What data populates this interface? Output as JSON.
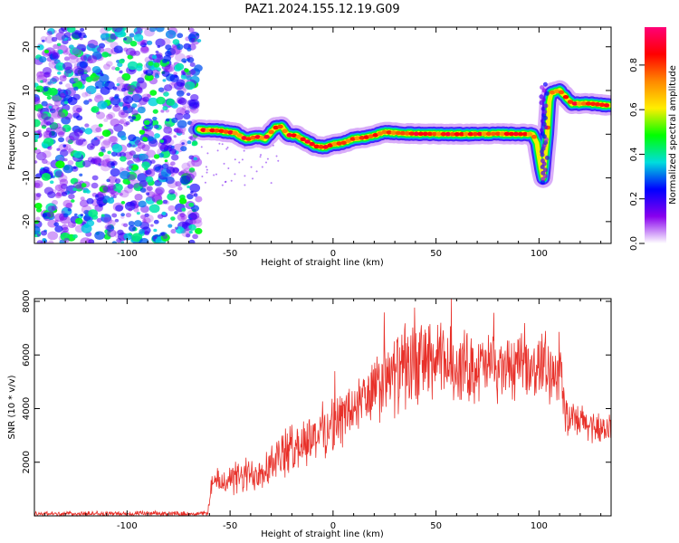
{
  "title": "PAZ1.2024.155.12.19.G09",
  "chart_data": [
    {
      "type": "heatmap",
      "xlabel": "Height of straight line (km)",
      "ylabel": "Frequency (Hz)",
      "xlim": [
        -145,
        135
      ],
      "ylim": [
        -25,
        24.5
      ],
      "xticks": [
        -100,
        -50,
        0,
        50,
        100
      ],
      "yticks": [
        -20,
        -10,
        0,
        10,
        20
      ],
      "noise_region": {
        "x": [
          -145,
          -65
        ],
        "amplitude": [
          0.1,
          0.5
        ]
      },
      "ridge": [
        [
          -65,
          1
        ],
        [
          -55,
          0.8
        ],
        [
          -47,
          0.2
        ],
        [
          -42,
          -1.2
        ],
        [
          -37,
          -0.6
        ],
        [
          -33,
          -1.0
        ],
        [
          -28,
          1.5
        ],
        [
          -25,
          1.8
        ],
        [
          -22,
          -0.2
        ],
        [
          -18,
          -0.3
        ],
        [
          -12,
          -1.8
        ],
        [
          -8,
          -2.8
        ],
        [
          -4,
          -3.0
        ],
        [
          0,
          -2.3
        ],
        [
          5,
          -2.0
        ],
        [
          10,
          -1.0
        ],
        [
          15,
          -0.8
        ],
        [
          20,
          -0.3
        ],
        [
          25,
          0.5
        ],
        [
          30,
          0.3
        ],
        [
          40,
          0.1
        ],
        [
          60,
          0.0
        ],
        [
          80,
          0.1
        ],
        [
          97,
          0.0
        ],
        [
          99,
          -2.0
        ],
        [
          101,
          -8.0
        ],
        [
          102,
          -10.0
        ],
        [
          103,
          -5.0
        ],
        [
          104,
          0.0
        ],
        [
          105,
          7.5
        ],
        [
          106,
          9.5
        ],
        [
          110,
          10.0
        ],
        [
          113,
          8.5
        ],
        [
          116,
          7.0
        ],
        [
          125,
          7.0
        ],
        [
          135,
          6.5
        ]
      ],
      "grid": false
    },
    {
      "type": "line",
      "xlabel": "Height of straight line (km)",
      "ylabel": "SNR (10 * v/v)",
      "xlim": [
        -145,
        135
      ],
      "ylim": [
        0,
        8100
      ],
      "xticks": [
        -100,
        -50,
        0,
        50,
        100
      ],
      "yticks": [
        2000,
        4000,
        6000,
        8000
      ],
      "color": "#e8312a",
      "envelope": [
        {
          "x": -145,
          "mean": 80,
          "spread": 100
        },
        {
          "x": -61,
          "mean": 80,
          "spread": 100
        },
        {
          "x": -59,
          "mean": 1200,
          "spread": 500
        },
        {
          "x": -40,
          "mean": 1500,
          "spread": 800
        },
        {
          "x": -20,
          "mean": 2500,
          "spread": 1000
        },
        {
          "x": 0,
          "mean": 3400,
          "spread": 1100
        },
        {
          "x": 15,
          "mean": 4300,
          "spread": 1300
        },
        {
          "x": 30,
          "mean": 5300,
          "spread": 1600
        },
        {
          "x": 45,
          "mean": 5800,
          "spread": 1700
        },
        {
          "x": 60,
          "mean": 5600,
          "spread": 1500
        },
        {
          "x": 80,
          "mean": 5500,
          "spread": 1300
        },
        {
          "x": 100,
          "mean": 5500,
          "spread": 1200
        },
        {
          "x": 111,
          "mean": 5400,
          "spread": 1200
        },
        {
          "x": 113,
          "mean": 3600,
          "spread": 800
        },
        {
          "x": 135,
          "mean": 3200,
          "spread": 600
        }
      ],
      "grid": false
    }
  ],
  "colorbar": {
    "label": "Normalized spectral amplitude",
    "ticks": [
      0.0,
      0.2,
      0.4,
      0.6,
      0.8
    ],
    "range": [
      0,
      0.97
    ],
    "colormap": [
      "#ffffff",
      "#8800ee",
      "#0000ff",
      "#00dddd",
      "#00ff00",
      "#ffee00",
      "#ff8800",
      "#ff0000",
      "#ff0077"
    ]
  }
}
